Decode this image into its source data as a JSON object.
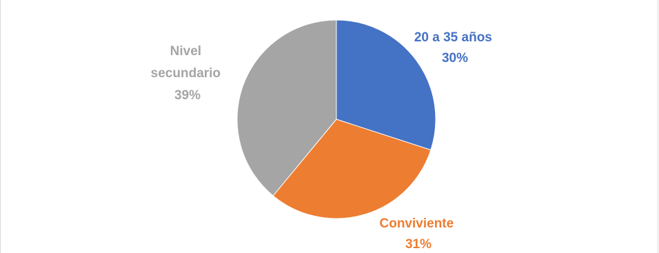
{
  "chart_data": {
    "type": "pie",
    "title": "",
    "slices": [
      {
        "label": "20 a 35 años",
        "value": 30,
        "percent_label": "30%",
        "color": "#4472C4"
      },
      {
        "label": "Conviviente",
        "value": 31,
        "percent_label": "31%",
        "color": "#ED7D31"
      },
      {
        "label": "Nivel secundario",
        "value": 39,
        "percent_label": "39%",
        "color": "#A5A5A5"
      }
    ],
    "start": "12 o'clock",
    "direction": "clockwise",
    "legend": "none",
    "data_labels": "outside, category name and percentage"
  }
}
